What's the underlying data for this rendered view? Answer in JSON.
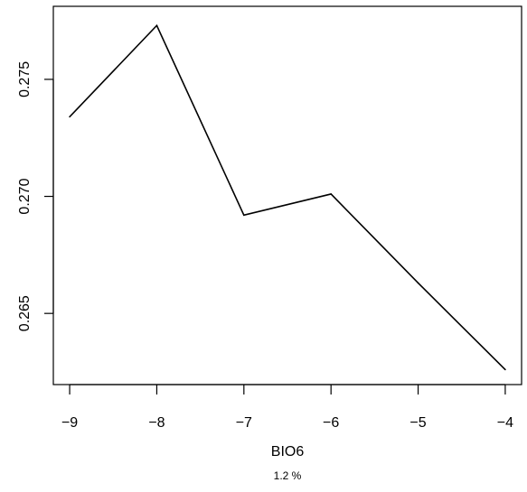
{
  "chart_data": {
    "type": "line",
    "xlabel": "BIO6",
    "subtitle": "1.2 %",
    "ylabel": "",
    "x": [
      -9,
      -8,
      -7,
      -6,
      -5,
      -4
    ],
    "series": [
      {
        "values": [
          0.2734,
          0.2773,
          0.2692,
          0.2701,
          0.2663,
          0.2626
        ]
      }
    ],
    "xticks": [
      -9,
      -8,
      -7,
      -6,
      -5,
      -4
    ],
    "xtick_labels": [
      "−9",
      "−8",
      "−7",
      "−6",
      "−5",
      "−4"
    ],
    "yticks": [
      0.265,
      0.27,
      0.275
    ],
    "ytick_labels": [
      "0.265",
      "0.270",
      "0.275"
    ],
    "xlim": [
      -9.1875,
      -3.8125
    ],
    "ylim": [
      0.26196,
      0.27812
    ],
    "grid": false,
    "line_color": "#000000"
  }
}
